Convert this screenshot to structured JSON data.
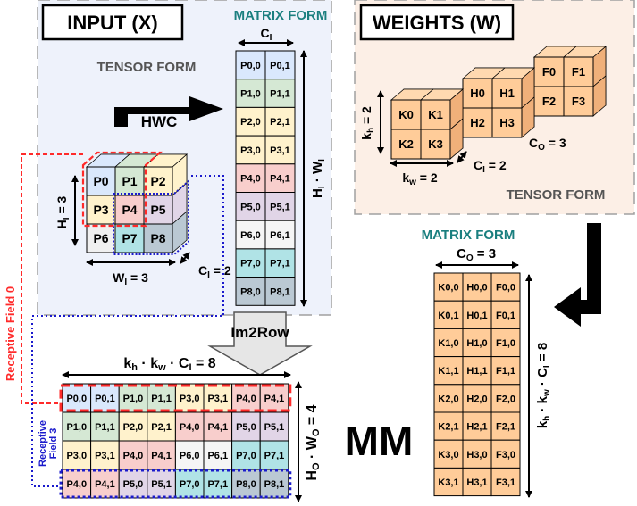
{
  "input_panel": {
    "title": "INPUT (X)",
    "tensor_label": "TENSOR FORM",
    "matrix_label": "MATRIX FORM",
    "hwc_label": "HWC",
    "matrix_width_label": "C",
    "matrix_width_sub": "I",
    "matrix_height_label": "H",
    "matrix_height_sub1": "I",
    "matrix_height_mid": " · W",
    "matrix_height_sub2": "I",
    "cube_height_label": "H",
    "cube_height_sub": "I",
    "cube_height_eq": " = 3",
    "cube_width_label": "W",
    "cube_width_sub": "I",
    "cube_width_eq": " = 3",
    "cube_depth_label": "C",
    "cube_depth_sub": "I",
    "cube_depth_eq": " = 2",
    "cube_front": [
      "P0",
      "P1",
      "P2",
      "P3",
      "P4",
      "P5",
      "P6",
      "P7",
      "P8"
    ],
    "matrix_rows": [
      [
        "P0,0",
        "P0,1"
      ],
      [
        "P1,0",
        "P1,1"
      ],
      [
        "P2,0",
        "P2,1"
      ],
      [
        "P3,0",
        "P3,1"
      ],
      [
        "P4,0",
        "P4,1"
      ],
      [
        "P5,0",
        "P5,1"
      ],
      [
        "P6,0",
        "P6,1"
      ],
      [
        "P7,0",
        "P7,1"
      ],
      [
        "P8,0",
        "P8,1"
      ]
    ]
  },
  "weights_panel": {
    "title": "WEIGHTS (W)",
    "tensor_label": "TENSOR FORM",
    "kernel_k": [
      "K0",
      "K1",
      "K2",
      "K3"
    ],
    "kernel_h": [
      "H0",
      "H1",
      "H2",
      "H3"
    ],
    "kernel_f": [
      "F0",
      "F1",
      "F2",
      "F3"
    ],
    "kh_label": "k",
    "kh_sub": "h",
    "kh_eq": " = 2",
    "kw_label": "k",
    "kw_sub": "w",
    "kw_eq": " = 2",
    "ci_label": "C",
    "ci_sub": "I",
    "ci_eq": " = 2",
    "co_label": "C",
    "co_sub": "O",
    "co_eq": " = 3"
  },
  "weights_matrix": {
    "matrix_label": "MATRIX FORM",
    "width_label": "C",
    "width_sub": "O",
    "width_eq": " = 3",
    "height_k1": "k",
    "height_sub1": "h",
    "height_dot1": " · k",
    "height_sub2": "w",
    "height_dot2": " · C",
    "height_sub3": "I",
    "height_eq": " = 8",
    "rows": [
      [
        "K0,0",
        "H0,0",
        "F0,0"
      ],
      [
        "K0,1",
        "H0,1",
        "F0,1"
      ],
      [
        "K1,0",
        "H1,0",
        "F1,0"
      ],
      [
        "K1,1",
        "H1,1",
        "F1,1"
      ],
      [
        "K2,0",
        "H2,0",
        "F2,0"
      ],
      [
        "K2,1",
        "H2,1",
        "F2,1"
      ],
      [
        "K3,0",
        "H3,0",
        "F3,0"
      ],
      [
        "K3,1",
        "H3,1",
        "F3,1"
      ]
    ]
  },
  "im2row": {
    "label": "Im2Row",
    "rf0_label": "Receptive Field 0",
    "rf3_label1": "Receptive",
    "rf3_label2": "Field 3",
    "width_k1": "k",
    "width_sub1": "h",
    "width_dot1": " · k",
    "width_sub2": "w",
    "width_dot2": " · C",
    "width_sub3": "I",
    "width_eq": " = 8",
    "height_h": "H",
    "height_sub1": "O",
    "height_dot": " · W",
    "height_sub2": "O",
    "height_eq": " = 4",
    "rows": [
      [
        "P0,0",
        "P0,1",
        "P1,0",
        "P1,1",
        "P3,0",
        "P3,1",
        "P4,0",
        "P4,1"
      ],
      [
        "P1,0",
        "P1,1",
        "P2,0",
        "P2,1",
        "P4,0",
        "P4,1",
        "P5,0",
        "P5,1"
      ],
      [
        "P3,0",
        "P3,1",
        "P4,0",
        "P4,1",
        "P6,0",
        "P6,1",
        "P7,0",
        "P7,1"
      ],
      [
        "P4,0",
        "P4,1",
        "P5,0",
        "P5,1",
        "P7,0",
        "P7,1",
        "P8,0",
        "P8,1"
      ]
    ]
  },
  "mm_label": "MM",
  "colors": {
    "P0": "#dae8fc",
    "P1": "#d5e8d4",
    "P2": "#fff2cc",
    "P3": "#fff2cc",
    "P4": "#f8cecc",
    "P5": "#e1d5e7",
    "P6": "#f5f5f5",
    "P7": "#b0e3e6",
    "P8": "#bac8d3",
    "weights": "#ffcc99",
    "input_bg": "#eef2fb",
    "weights_bg": "#fcefe6",
    "teal": "#1a7f7f",
    "red": "#ff2a2a",
    "blue": "#1a1acc"
  }
}
